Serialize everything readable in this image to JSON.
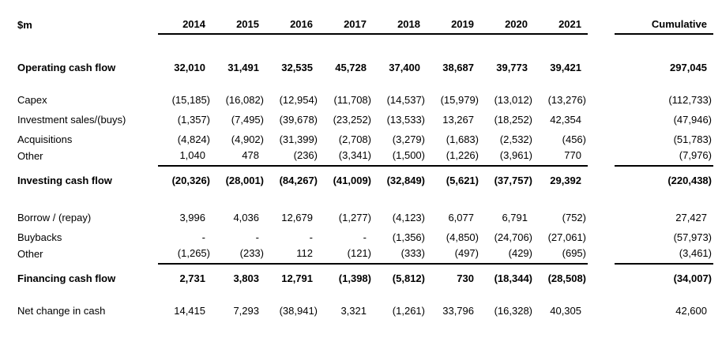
{
  "colors": {
    "text": "#000000",
    "background": "#ffffff",
    "rule_line": "#000000"
  },
  "table": {
    "unit_label": "$m",
    "year_headers": [
      "2014",
      "2015",
      "2016",
      "2017",
      "2018",
      "2019",
      "2020",
      "2021"
    ],
    "cumulative_header": "Cumulative",
    "rows": [
      {
        "label": "Operating cash flow",
        "values": [
          "32,010",
          "31,491",
          "32,535",
          "45,728",
          "37,400",
          "38,687",
          "39,773",
          "39,421"
        ],
        "cumulative": "297,045"
      },
      {
        "label": "Capex",
        "values": [
          "(15,185)",
          "(16,082)",
          "(12,954)",
          "(11,708)",
          "(14,537)",
          "(15,979)",
          "(13,012)",
          "(13,276)"
        ],
        "cumulative": "(112,733)"
      },
      {
        "label": "Investment sales/(buys)",
        "values": [
          "(1,357)",
          "(7,495)",
          "(39,678)",
          "(23,252)",
          "(13,533)",
          "13,267",
          "(18,252)",
          "42,354"
        ],
        "cumulative": "(47,946)"
      },
      {
        "label": "Acquisitions",
        "values": [
          "(4,824)",
          "(4,902)",
          "(31,399)",
          "(2,708)",
          "(3,279)",
          "(1,683)",
          "(2,532)",
          "(456)"
        ],
        "cumulative": "(51,783)"
      },
      {
        "label": "Other",
        "values": [
          "1,040",
          "478",
          "(236)",
          "(3,341)",
          "(1,500)",
          "(1,226)",
          "(3,961)",
          "770"
        ],
        "cumulative": "(7,976)"
      },
      {
        "label": "Investing cash flow",
        "values": [
          "(20,326)",
          "(28,001)",
          "(84,267)",
          "(41,009)",
          "(32,849)",
          "(5,621)",
          "(37,757)",
          "29,392"
        ],
        "cumulative": "(220,438)"
      },
      {
        "label": "Borrow / (repay)",
        "values": [
          "3,996",
          "4,036",
          "12,679",
          "(1,277)",
          "(4,123)",
          "6,077",
          "6,791",
          "(752)"
        ],
        "cumulative": "27,427"
      },
      {
        "label": "Buybacks",
        "values": [
          "-",
          "-",
          "-",
          "-",
          "(1,356)",
          "(4,850)",
          "(24,706)",
          "(27,061)"
        ],
        "cumulative": "(57,973)"
      },
      {
        "label": "Other",
        "values": [
          "(1,265)",
          "(233)",
          "112",
          "(121)",
          "(333)",
          "(497)",
          "(429)",
          "(695)"
        ],
        "cumulative": "(3,461)"
      },
      {
        "label": "Financing cash flow",
        "values": [
          "2,731",
          "3,803",
          "12,791",
          "(1,398)",
          "(5,812)",
          "730",
          "(18,344)",
          "(28,508)"
        ],
        "cumulative": "(34,007)"
      },
      {
        "label": "Net change in cash",
        "values": [
          "14,415",
          "7,293",
          "(38,941)",
          "3,321",
          "(1,261)",
          "33,796",
          "(16,328)",
          "40,305"
        ],
        "cumulative": "42,600"
      }
    ]
  }
}
